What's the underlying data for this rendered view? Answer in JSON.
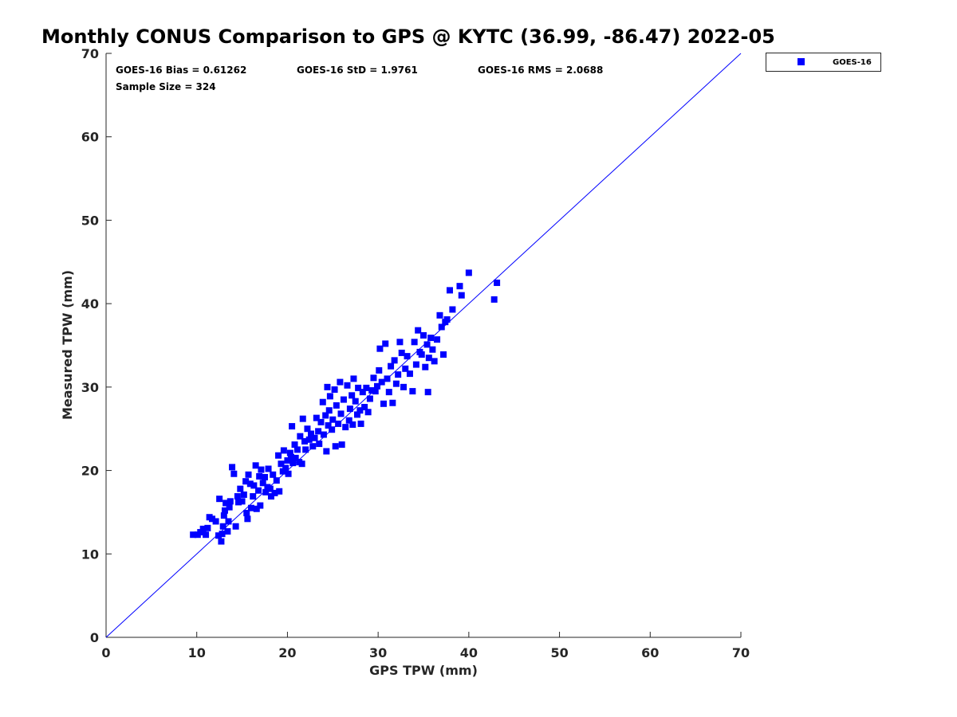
{
  "chart_data": {
    "type": "scatter",
    "title": "Monthly CONUS Comparison to GPS @ KYTC (36.99, -86.47) 2022-05",
    "xlabel": "GPS TPW (mm)",
    "ylabel": "Measured TPW (mm)",
    "xlim": [
      0,
      70
    ],
    "ylim": [
      0,
      70
    ],
    "xticks": [
      "0",
      "10",
      "20",
      "30",
      "40",
      "50",
      "60",
      "70"
    ],
    "yticks": [
      "0",
      "10",
      "20",
      "30",
      "40",
      "50",
      "60",
      "70"
    ],
    "grid": false,
    "legend_position": "top-right, outside plot",
    "reference_line": {
      "x": [
        0,
        70
      ],
      "y": [
        0,
        70
      ],
      "color": "#0000ff"
    },
    "annotations": {
      "bias": "GOES-16 Bias = 0.61262",
      "std": "GOES-16 StD = 1.9761",
      "rms": "GOES-16 RMS = 2.0688",
      "sample_size": "Sample Size = 324"
    },
    "series": [
      {
        "name": "GOES-16",
        "color": "#0000ff",
        "marker": "square",
        "points": [
          [
            9.6,
            12.3
          ],
          [
            10.1,
            12.3
          ],
          [
            10.4,
            12.6
          ],
          [
            10.7,
            13.0
          ],
          [
            11.0,
            12.3
          ],
          [
            11.2,
            13.1
          ],
          [
            11.4,
            14.4
          ],
          [
            11.7,
            14.2
          ],
          [
            12.1,
            13.9
          ],
          [
            12.4,
            12.2
          ],
          [
            12.5,
            16.6
          ],
          [
            12.7,
            11.5
          ],
          [
            12.8,
            12.4
          ],
          [
            12.9,
            13.3
          ],
          [
            13.0,
            14.6
          ],
          [
            13.1,
            15.2
          ],
          [
            13.2,
            16.1
          ],
          [
            13.4,
            12.7
          ],
          [
            13.5,
            13.9
          ],
          [
            13.6,
            15.6
          ],
          [
            13.7,
            16.3
          ],
          [
            13.9,
            20.4
          ],
          [
            14.1,
            19.6
          ],
          [
            14.3,
            13.3
          ],
          [
            14.5,
            16.9
          ],
          [
            14.6,
            16.2
          ],
          [
            14.8,
            17.8
          ],
          [
            15.0,
            16.3
          ],
          [
            15.2,
            17.1
          ],
          [
            15.4,
            18.7
          ],
          [
            15.5,
            14.9
          ],
          [
            15.6,
            14.2
          ],
          [
            15.7,
            19.5
          ],
          [
            15.9,
            18.4
          ],
          [
            16.0,
            15.5
          ],
          [
            16.2,
            16.9
          ],
          [
            16.3,
            18.2
          ],
          [
            16.5,
            20.6
          ],
          [
            16.6,
            15.4
          ],
          [
            16.8,
            17.6
          ],
          [
            16.9,
            19.3
          ],
          [
            17.0,
            15.8
          ],
          [
            17.1,
            20.1
          ],
          [
            17.3,
            18.5
          ],
          [
            17.5,
            19.2
          ],
          [
            17.6,
            17.4
          ],
          [
            17.8,
            18.0
          ],
          [
            17.9,
            20.2
          ],
          [
            18.1,
            17.8
          ],
          [
            18.2,
            16.9
          ],
          [
            18.4,
            19.5
          ],
          [
            18.6,
            17.3
          ],
          [
            18.8,
            18.8
          ],
          [
            19.0,
            21.8
          ],
          [
            19.1,
            17.5
          ],
          [
            19.3,
            20.8
          ],
          [
            19.5,
            19.9
          ],
          [
            19.6,
            22.4
          ],
          [
            19.8,
            20.3
          ],
          [
            20.0,
            21.2
          ],
          [
            20.1,
            19.6
          ],
          [
            20.3,
            22.1
          ],
          [
            20.4,
            21.6
          ],
          [
            20.5,
            25.3
          ],
          [
            20.6,
            20.9
          ],
          [
            20.8,
            23.1
          ],
          [
            20.9,
            21.5
          ],
          [
            21.1,
            22.5
          ],
          [
            21.3,
            21.0
          ],
          [
            21.4,
            24.1
          ],
          [
            21.6,
            20.8
          ],
          [
            21.7,
            26.2
          ],
          [
            21.9,
            23.5
          ],
          [
            22.0,
            22.5
          ],
          [
            22.2,
            25.0
          ],
          [
            22.4,
            23.7
          ],
          [
            22.6,
            24.4
          ],
          [
            22.8,
            22.9
          ],
          [
            23.0,
            23.9
          ],
          [
            23.2,
            26.3
          ],
          [
            23.4,
            24.7
          ],
          [
            23.5,
            23.2
          ],
          [
            23.7,
            25.8
          ],
          [
            23.9,
            28.2
          ],
          [
            24.0,
            24.3
          ],
          [
            24.2,
            26.6
          ],
          [
            24.3,
            22.3
          ],
          [
            24.4,
            30.0
          ],
          [
            24.5,
            25.4
          ],
          [
            24.6,
            27.2
          ],
          [
            24.7,
            28.9
          ],
          [
            24.9,
            24.9
          ],
          [
            25.0,
            26.1
          ],
          [
            25.2,
            29.7
          ],
          [
            25.3,
            22.9
          ],
          [
            25.4,
            27.8
          ],
          [
            25.6,
            25.6
          ],
          [
            25.8,
            30.6
          ],
          [
            25.9,
            26.8
          ],
          [
            26.0,
            23.1
          ],
          [
            26.2,
            28.5
          ],
          [
            26.4,
            25.2
          ],
          [
            26.6,
            30.2
          ],
          [
            26.8,
            26.0
          ],
          [
            26.9,
            27.4
          ],
          [
            27.1,
            29.0
          ],
          [
            27.2,
            25.5
          ],
          [
            27.3,
            31.0
          ],
          [
            27.5,
            28.3
          ],
          [
            27.7,
            26.7
          ],
          [
            27.8,
            29.9
          ],
          [
            28.0,
            27.2
          ],
          [
            28.1,
            25.6
          ],
          [
            28.3,
            29.4
          ],
          [
            28.5,
            27.6
          ],
          [
            28.7,
            29.9
          ],
          [
            28.9,
            27.0
          ],
          [
            29.1,
            28.6
          ],
          [
            29.3,
            29.6
          ],
          [
            29.5,
            31.1
          ],
          [
            29.7,
            29.5
          ],
          [
            29.9,
            30.1
          ],
          [
            30.1,
            32.0
          ],
          [
            30.2,
            34.6
          ],
          [
            30.4,
            30.6
          ],
          [
            30.6,
            28.0
          ],
          [
            30.8,
            35.2
          ],
          [
            31.0,
            31.0
          ],
          [
            31.2,
            29.4
          ],
          [
            31.4,
            32.5
          ],
          [
            31.6,
            28.1
          ],
          [
            31.8,
            33.2
          ],
          [
            32.0,
            30.4
          ],
          [
            32.2,
            31.5
          ],
          [
            32.4,
            35.4
          ],
          [
            32.6,
            34.1
          ],
          [
            32.8,
            30.0
          ],
          [
            33.0,
            32.2
          ],
          [
            33.2,
            33.7
          ],
          [
            33.5,
            31.6
          ],
          [
            33.8,
            29.5
          ],
          [
            34.0,
            35.4
          ],
          [
            34.2,
            32.7
          ],
          [
            34.4,
            36.8
          ],
          [
            34.6,
            34.2
          ],
          [
            34.8,
            33.9
          ],
          [
            35.0,
            36.2
          ],
          [
            35.2,
            32.4
          ],
          [
            35.4,
            35.1
          ],
          [
            35.5,
            29.4
          ],
          [
            35.6,
            33.5
          ],
          [
            35.8,
            35.9
          ],
          [
            36.0,
            34.5
          ],
          [
            36.2,
            33.1
          ],
          [
            36.5,
            35.7
          ],
          [
            36.8,
            38.6
          ],
          [
            37.0,
            37.2
          ],
          [
            37.2,
            33.9
          ],
          [
            37.4,
            37.8
          ],
          [
            37.6,
            38.1
          ],
          [
            37.9,
            41.6
          ],
          [
            38.2,
            39.3
          ],
          [
            39.0,
            42.1
          ],
          [
            39.2,
            41.0
          ],
          [
            40.0,
            43.7
          ],
          [
            42.8,
            40.5
          ],
          [
            43.1,
            42.5
          ]
        ]
      }
    ]
  }
}
